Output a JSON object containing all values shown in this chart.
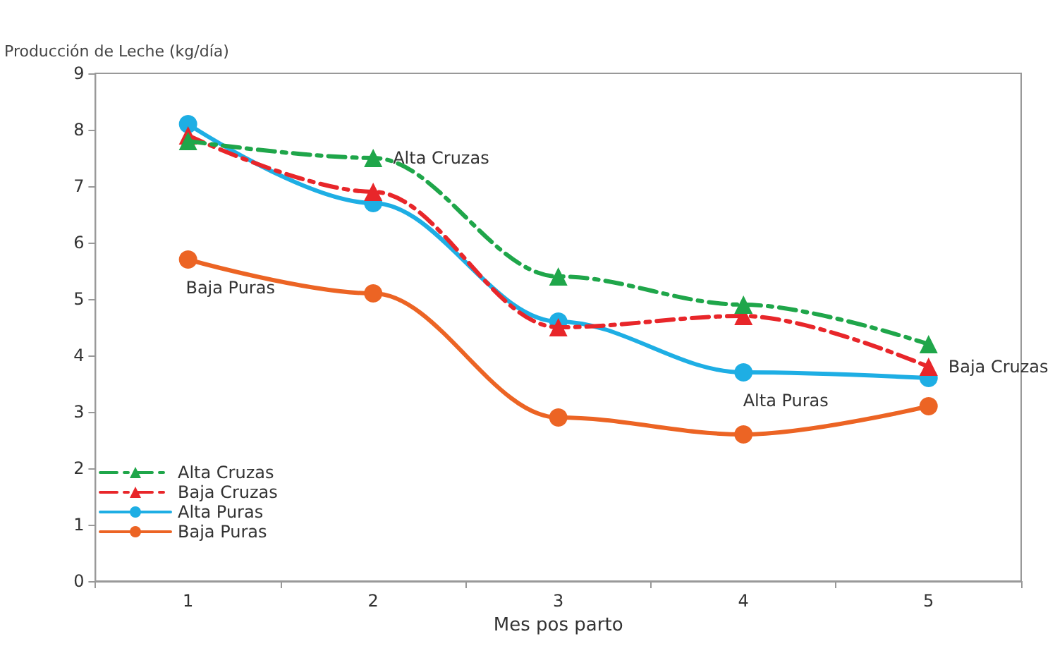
{
  "chart_data": {
    "type": "line",
    "ylabel": "Producción de Leche (kg/día)",
    "xlabel": "Mes pos parto",
    "categories": [
      "1",
      "2",
      "3",
      "4",
      "5"
    ],
    "series": [
      {
        "name": "Alta Cruzas",
        "color": "#1fa64a",
        "values": [
          7.8,
          7.5,
          5.4,
          4.9,
          4.2
        ],
        "marker": "triangle",
        "line_style": "dashed"
      },
      {
        "name": "Baja Cruzas",
        "color": "#e8262a",
        "values": [
          7.9,
          6.9,
          4.5,
          4.7,
          3.8
        ],
        "marker": "triangle",
        "line_style": "dashed"
      },
      {
        "name": "Alta Puras",
        "color": "#1eaee4",
        "values": [
          8.1,
          6.7,
          4.6,
          3.7,
          3.6
        ],
        "marker": "circle",
        "line_style": "solid"
      },
      {
        "name": "Baja Puras",
        "color": "#ec6424",
        "values": [
          5.7,
          5.1,
          2.9,
          2.6,
          3.1
        ],
        "marker": "circle",
        "line_style": "solid"
      }
    ],
    "annotations": [
      {
        "text": "Alta Cruzas",
        "x": "2",
        "y": 7.5
      },
      {
        "text": "Baja Puras",
        "x": "1",
        "y": 5.7
      },
      {
        "text": "Alta Puras",
        "x": "4",
        "y": 3.7
      },
      {
        "text": "Baja Cruzas",
        "x": "5",
        "y": 3.8
      }
    ],
    "ylim": [
      0,
      9
    ],
    "yticks": [
      0,
      1,
      2,
      3,
      4,
      5,
      6,
      7,
      8,
      9
    ],
    "grid": false,
    "legend": "bottom left"
  }
}
